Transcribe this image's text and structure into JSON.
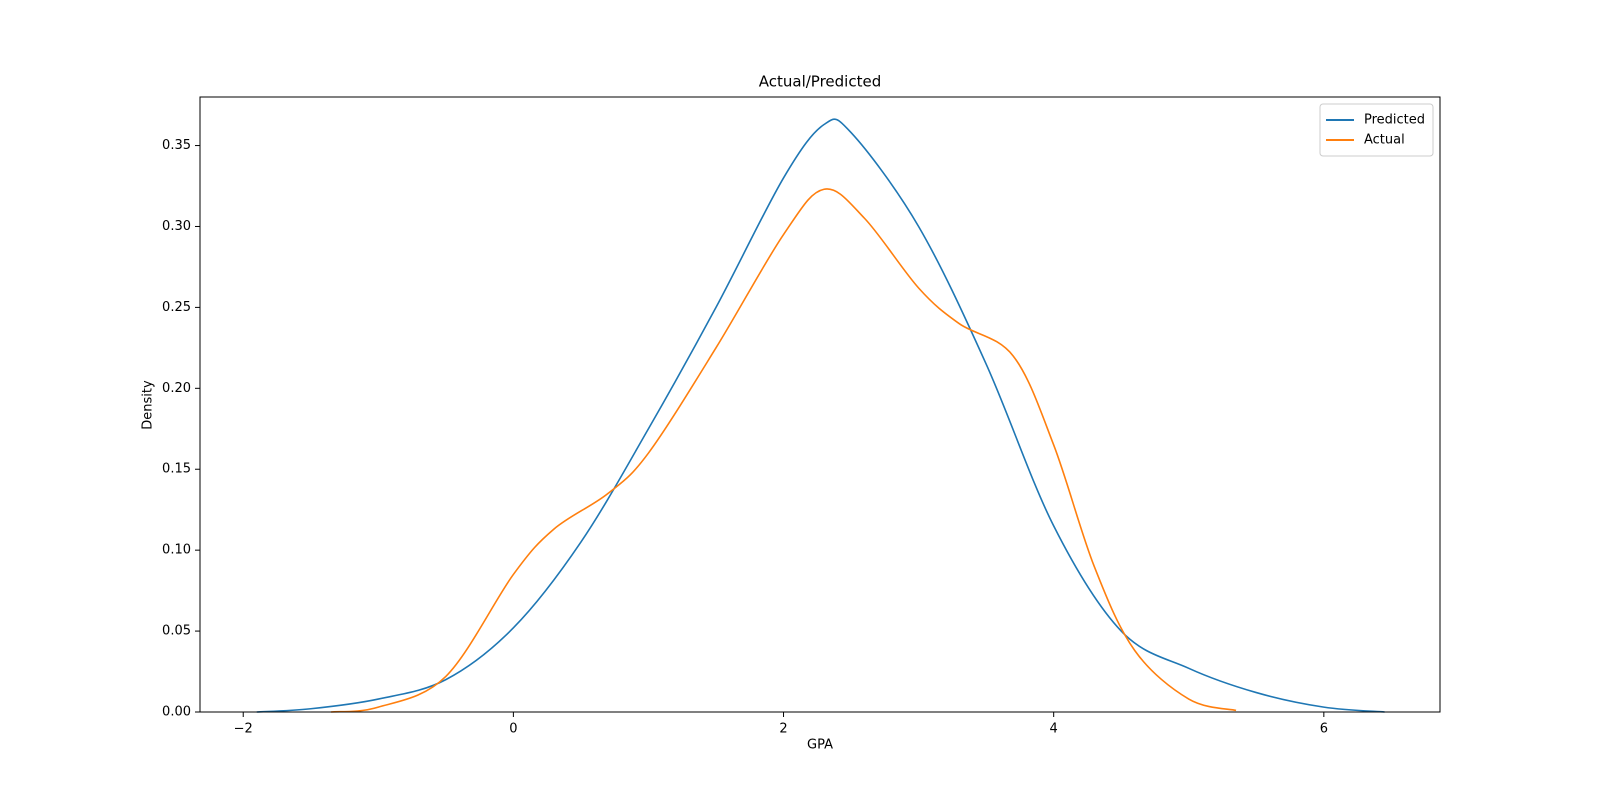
{
  "chart_data": {
    "type": "line",
    "title": "Actual/Predicted",
    "x_label": "GPA",
    "y_label": "Density",
    "series": [
      {
        "name": "Predicted",
        "color": "#1f77b4",
        "x": [
          -1.9,
          -1.5,
          -1.0,
          -0.5,
          0,
          0.5,
          1.0,
          1.5,
          2.0,
          2.3,
          2.5,
          3.0,
          3.5,
          4.0,
          4.5,
          5.0,
          5.5,
          6.0,
          6.45
        ],
        "values": [
          0.0,
          0.002,
          0.008,
          0.02,
          0.052,
          0.105,
          0.175,
          0.25,
          0.33,
          0.363,
          0.358,
          0.3,
          0.215,
          0.115,
          0.05,
          0.027,
          0.012,
          0.003,
          0.0
        ]
      },
      {
        "name": "Actual",
        "color": "#ff7f0e",
        "x": [
          -1.35,
          -1.0,
          -0.5,
          0,
          0.3,
          0.7,
          1.0,
          1.5,
          2.0,
          2.3,
          2.6,
          3.0,
          3.3,
          3.7,
          4.0,
          4.3,
          4.6,
          5.0,
          5.35
        ],
        "values": [
          0.0,
          0.003,
          0.022,
          0.085,
          0.113,
          0.135,
          0.16,
          0.225,
          0.295,
          0.323,
          0.305,
          0.262,
          0.24,
          0.22,
          0.165,
          0.09,
          0.038,
          0.008,
          0.001
        ]
      }
    ],
    "xlim": [
      -2.32,
      6.86
    ],
    "ylim": [
      0,
      0.38
    ],
    "xticks": [
      {
        "value": -2,
        "label": "−2"
      },
      0,
      2,
      4,
      6
    ],
    "yticks": [
      {
        "value": 0,
        "label": "0.00"
      },
      {
        "value": 0.05,
        "label": "0.05"
      },
      {
        "value": 0.1,
        "label": "0.10"
      },
      {
        "value": 0.15,
        "label": "0.15"
      },
      {
        "value": 0.2,
        "label": "0.20"
      },
      {
        "value": 0.25,
        "label": "0.25"
      },
      {
        "value": 0.3,
        "label": "0.30"
      },
      {
        "value": 0.35,
        "label": "0.35"
      }
    ],
    "legend": "upper right",
    "grid": false
  }
}
